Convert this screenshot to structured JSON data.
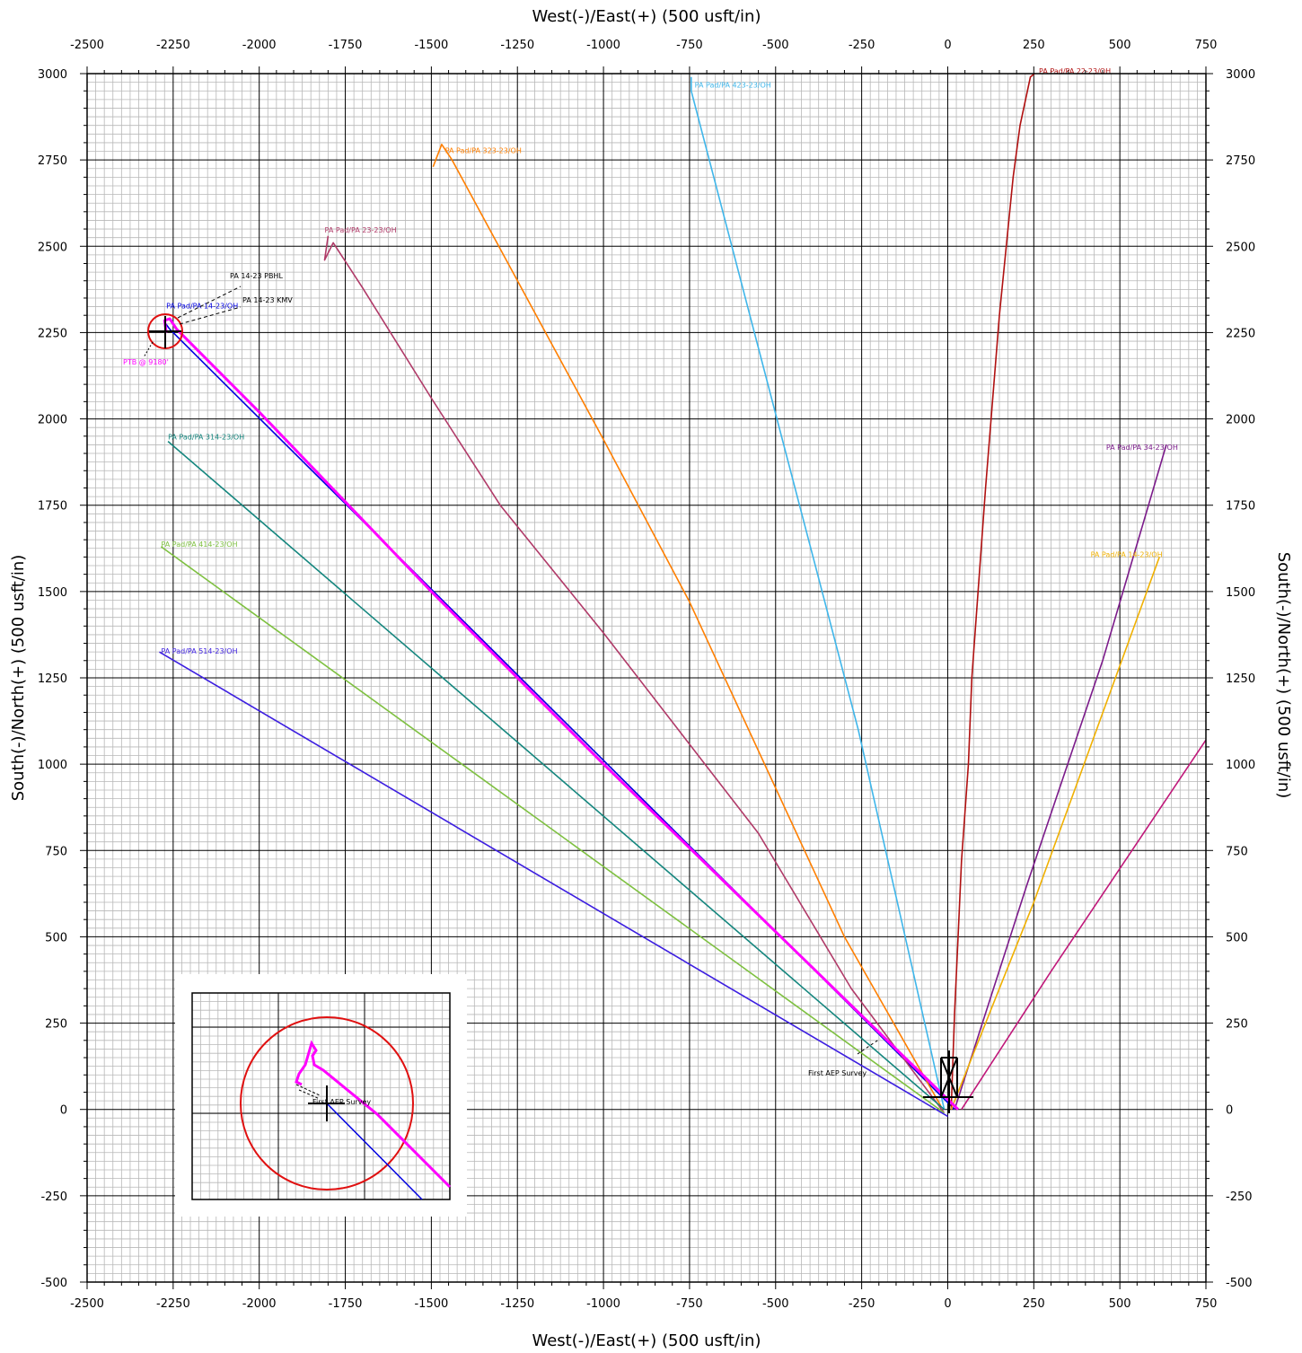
{
  "chart_data": {
    "type": "line",
    "title": "",
    "xlabel": "West(-)/East(+) (500 usft/in)",
    "ylabel": "South(-)/North(+) (500 usft/in)",
    "xlim": [
      -2500,
      750
    ],
    "ylim": [
      -500,
      3000
    ],
    "major_x_ticks": [
      -2500,
      -2250,
      -2000,
      -1750,
      -1500,
      -1250,
      -1000,
      -750,
      -500,
      -250,
      0,
      250,
      500,
      750
    ],
    "major_y_ticks": [
      -500,
      -250,
      0,
      250,
      500,
      750,
      1000,
      1250,
      1500,
      1750,
      2000,
      2250,
      2500,
      2750,
      3000
    ],
    "grid": true,
    "series": [
      {
        "name": "PA Pad/PA 14-23/OH",
        "color": "#0000e0",
        "label_at": [
          -2270,
          2320
        ],
        "points": [
          [
            20,
            0
          ],
          [
            -2260,
            2260
          ],
          [
            -2275,
            2280
          ]
        ]
      },
      {
        "name": "PA Pad/PA 23-23/OH",
        "color": "#b03a68",
        "label_at": [
          -1810,
          2540
        ],
        "points": [
          [
            -10,
            -10
          ],
          [
            -280,
            350
          ],
          [
            -550,
            800
          ],
          [
            -1000,
            1380
          ],
          [
            -1300,
            1750
          ],
          [
            -1500,
            2060
          ],
          [
            -1700,
            2380
          ],
          [
            -1785,
            2510
          ],
          [
            -1810,
            2460
          ],
          [
            -1800,
            2530
          ]
        ]
      },
      {
        "name": "PA Pad/PA 323-23/OH",
        "color": "#ff7f00",
        "label_at": [
          -1460,
          2770
        ],
        "points": [
          [
            -20,
            10
          ],
          [
            -300,
            500
          ],
          [
            -750,
            1470
          ],
          [
            -1000,
            1940
          ],
          [
            -1440,
            2750
          ],
          [
            -1470,
            2795
          ],
          [
            -1495,
            2730
          ]
        ]
      },
      {
        "name": "PA Pad/PA 423-23/OH",
        "color": "#3fb6ea",
        "label_at": [
          -735,
          2960
        ],
        "points": [
          [
            -10,
            0
          ],
          [
            -260,
            1100
          ],
          [
            -470,
            1900
          ],
          [
            -745,
            2950
          ],
          [
            -745,
            2990
          ]
        ]
      },
      {
        "name": "PA Pad/PA 22-23/OH",
        "color": "#b01010",
        "label_at": [
          265,
          3000
        ],
        "points": [
          [
            10,
            0
          ],
          [
            20,
            280
          ],
          [
            30,
            500
          ],
          [
            40,
            720
          ],
          [
            60,
            1000
          ],
          [
            70,
            1250
          ],
          [
            110,
            1800
          ],
          [
            150,
            2300
          ],
          [
            190,
            2700
          ],
          [
            210,
            2850
          ],
          [
            240,
            2990
          ],
          [
            252,
            3000
          ]
        ]
      },
      {
        "name": "PA Pad/PA 34-23/OH",
        "color": "#7b1a8a",
        "label_at": [
          460,
          1910
        ],
        "points": [
          [
            20,
            0
          ],
          [
            230,
            650
          ],
          [
            450,
            1300
          ],
          [
            635,
            1925
          ]
        ]
      },
      {
        "name": "PA Pad/PA 14-23/OH",
        "color": "#f0b000",
        "label_at": [
          415,
          1600
        ],
        "points": [
          [
            10,
            0
          ],
          [
            250,
            600
          ],
          [
            615,
            1600
          ]
        ]
      },
      {
        "name": "",
        "color": "#c0187a",
        "label_at": [
          0,
          0
        ],
        "points": [
          [
            40,
            0
          ],
          [
            300,
            400
          ],
          [
            750,
            1070
          ]
        ]
      },
      {
        "name": "PA Pad/PA 314-23/OH",
        "color": "#14867e",
        "label_at": [
          -2265,
          1940
        ],
        "points": [
          [
            -10,
            0
          ],
          [
            -2265,
            1935
          ]
        ]
      },
      {
        "name": "PA Pad/PA 414-23/OH",
        "color": "#7ec040",
        "label_at": [
          -2285,
          1630
        ],
        "points": [
          [
            -10,
            -10
          ],
          [
            -2285,
            1630
          ]
        ]
      },
      {
        "name": "PA Pad/PA 514-23/OH",
        "color": "#3c1ee0",
        "label_at": [
          -2285,
          1320
        ],
        "points": [
          [
            0,
            -20
          ],
          [
            -2290,
            1325
          ]
        ]
      },
      {
        "name": "",
        "color": "#ff00ff",
        "label_at": [
          0,
          0
        ],
        "points": [
          [
            30,
            0
          ],
          [
            -1000,
            1000
          ],
          [
            -1500,
            1500
          ],
          [
            -2000,
            2020
          ],
          [
            -2240,
            2260
          ],
          [
            -2260,
            2290
          ],
          [
            -2275,
            2285
          ],
          [
            -2270,
            2250
          ]
        ]
      }
    ]
  },
  "annotations": {
    "pbhl": "PA 14-23 PBHL",
    "kmv": "PA 14-23 KMV",
    "ptb": "PTB @ 9180'",
    "first_survey": "First AEP Survey"
  }
}
